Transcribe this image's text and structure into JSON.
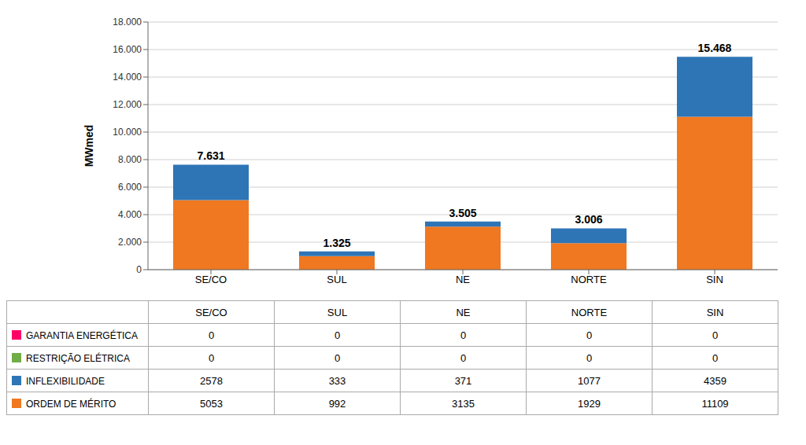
{
  "chart_data": {
    "type": "bar",
    "stacked": true,
    "ylabel": "MWmed",
    "categories": [
      "SE/CO",
      "SUL",
      "NE",
      "NORTE",
      "SIN"
    ],
    "series": [
      {
        "name": "ORDEM DE MÉRITO",
        "color": "#F07820",
        "values": [
          5053,
          992,
          3135,
          1929,
          11109
        ]
      },
      {
        "name": "INFLEXIBILIDADE",
        "color": "#2E75B6",
        "values": [
          2578,
          333,
          371,
          1077,
          4359
        ]
      },
      {
        "name": "RESTRIÇÃO ELÉTRICA",
        "color": "#70AD47",
        "values": [
          0,
          0,
          0,
          0,
          0
        ]
      },
      {
        "name": "GARANTIA ENERGÉTICA",
        "color": "#FF0066",
        "values": [
          0,
          0,
          0,
          0,
          0
        ]
      }
    ],
    "totals": [
      7631,
      1325,
      3505,
      3006,
      15468
    ],
    "total_labels": [
      "7.631",
      "1.325",
      "3.505",
      "3.006",
      "15.468"
    ],
    "ylim": [
      0,
      18000
    ],
    "yticks": [
      0,
      {
        "value": 2000,
        "label": "2.000"
      },
      {
        "value": 4000,
        "label": "4.000"
      },
      {
        "value": 6000,
        "label": "6.000"
      },
      {
        "value": 8000,
        "label": "8.000"
      },
      {
        "value": 10000,
        "label": "10.000"
      },
      {
        "value": 12000,
        "label": "12.000"
      },
      {
        "value": 14000,
        "label": "14.000"
      },
      {
        "value": 16000,
        "label": "16.000"
      },
      {
        "value": 18000,
        "label": "18.000"
      }
    ],
    "grid": true
  }
}
